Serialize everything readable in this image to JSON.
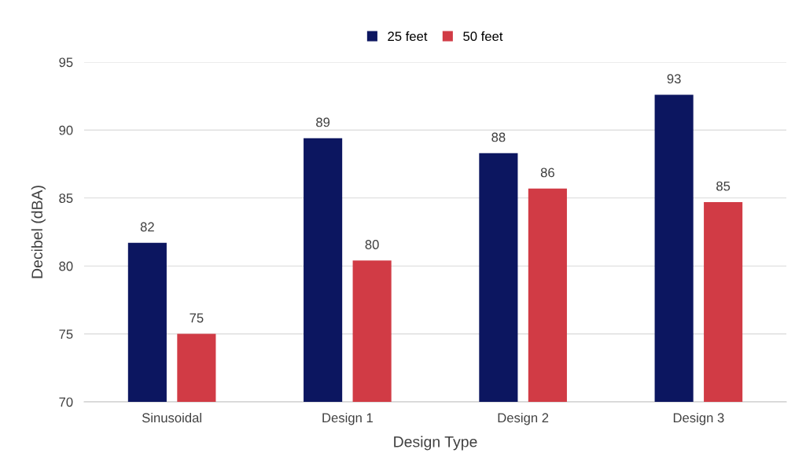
{
  "chart_data": {
    "type": "bar",
    "xlabel": "Design Type",
    "ylabel": "Decibel (dBA)",
    "categories": [
      "Sinusoidal",
      "Design 1",
      "Design 2",
      "Design 3"
    ],
    "series": [
      {
        "name": "25 feet",
        "color": "#0c1660",
        "values": [
          81.7,
          89.4,
          88.3,
          92.6
        ],
        "value_labels": [
          "82",
          "89",
          "88",
          "93"
        ]
      },
      {
        "name": "50 feet",
        "color": "#d13b45",
        "values": [
          75.0,
          80.4,
          85.7,
          84.7
        ],
        "value_labels": [
          "75",
          "80",
          "86",
          "85"
        ]
      }
    ],
    "ylim": [
      70,
      95
    ],
    "yticks": [
      70,
      75,
      80,
      85,
      90,
      95
    ],
    "grid": "y",
    "legend": "top"
  }
}
